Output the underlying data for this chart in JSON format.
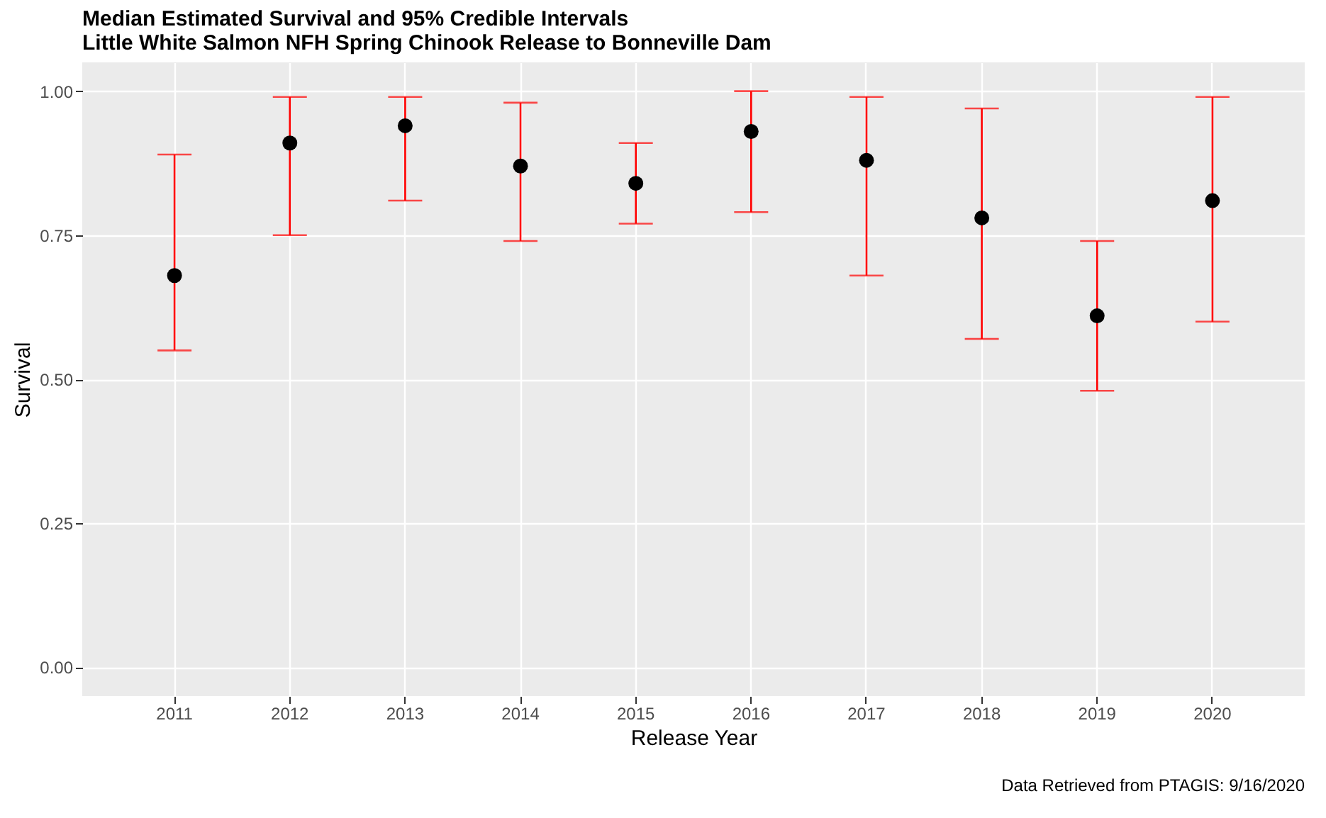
{
  "chart_data": {
    "type": "scatter",
    "title": [
      "Median Estimated Survival and 95% Credible Intervals",
      "Little White Salmon NFH Spring Chinook Release to Bonneville Dam"
    ],
    "xlabel": "Release Year",
    "ylabel": "Survival",
    "categories": [
      "2011",
      "2012",
      "2013",
      "2014",
      "2015",
      "2016",
      "2017",
      "2018",
      "2019",
      "2020"
    ],
    "series": [
      {
        "color": "#000000",
        "values": [
          0.68,
          0.91,
          0.94,
          0.87,
          0.84,
          0.93,
          0.88,
          0.78,
          0.61,
          0.81
        ],
        "errors": [
          [
            0.55,
            0.89
          ],
          [
            0.75,
            0.99
          ],
          [
            0.81,
            0.99
          ],
          [
            0.74,
            0.98
          ],
          [
            0.77,
            0.91
          ],
          [
            0.79,
            1.0
          ],
          [
            0.68,
            0.99
          ],
          [
            0.57,
            0.97
          ],
          [
            0.48,
            0.74
          ],
          [
            0.6,
            0.99
          ]
        ]
      }
    ],
    "ylim": [
      -0.05,
      1.05
    ],
    "yticks": [
      {
        "value": 0,
        "label": "0.00"
      },
      {
        "value": 0.25,
        "label": "0.25"
      },
      {
        "value": 0.5,
        "label": "0.50"
      },
      {
        "value": 0.75,
        "label": "0.75"
      },
      {
        "value": 1,
        "label": "1.00"
      }
    ],
    "grid": true,
    "marker": "circle",
    "annotations": [
      "Data Retrieved from PTAGIS: 9/16/2020"
    ]
  }
}
